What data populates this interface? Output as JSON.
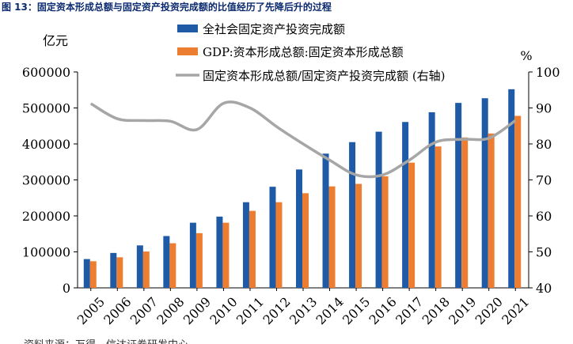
{
  "figure_title": "图 13：固定资本形成总额与固定资产投资完成额的比值经历了先降后升的过程",
  "source_note": "资料来源：万得，信达证券研发中心",
  "chart_data": {
    "type": "bar+line",
    "left_axis_unit": "亿元",
    "right_axis_unit": "%",
    "ylim_left": [
      0,
      600000
    ],
    "yticks_left": [
      "0",
      "100000",
      "200000",
      "300000",
      "400000",
      "500000",
      "600000"
    ],
    "ylim_right": [
      40,
      100
    ],
    "yticks_right": [
      "40",
      "50",
      "60",
      "70",
      "80",
      "90",
      "100"
    ],
    "categories": [
      "2005",
      "2006",
      "2007",
      "2008",
      "2009",
      "2010",
      "2011",
      "2012",
      "2013",
      "2014",
      "2015",
      "2016",
      "2017",
      "2018",
      "2019",
      "2020",
      "2021"
    ],
    "series": [
      {
        "name": "全社会固定资产投资完成额",
        "kind": "bar",
        "axis": "left",
        "color": "#1f5aa6",
        "values": [
          80000,
          97000,
          118000,
          144000,
          181000,
          198000,
          238000,
          281000,
          329000,
          373000,
          405000,
          434000,
          461000,
          488000,
          514000,
          527000,
          552000
        ]
      },
      {
        "name": "GDP:资本形成总额:固定资本形成总额",
        "kind": "bar",
        "axis": "left",
        "color": "#ed7d31",
        "values": [
          74000,
          85000,
          101000,
          124000,
          152000,
          181000,
          214000,
          238000,
          263000,
          282000,
          289000,
          310000,
          348000,
          393000,
          418000,
          429000,
          478000
        ]
      },
      {
        "name": "固定资本形成总额/固定资产投资完成额 (右轴)",
        "kind": "line",
        "axis": "right",
        "color": "#a6a6a6",
        "values": [
          91.2,
          87,
          86.5,
          86.3,
          84,
          91.3,
          90,
          84.8,
          80,
          75.5,
          71.4,
          71.4,
          75.5,
          80.5,
          81.3,
          81.6,
          86.5
        ]
      }
    ],
    "legend_position": "top"
  }
}
